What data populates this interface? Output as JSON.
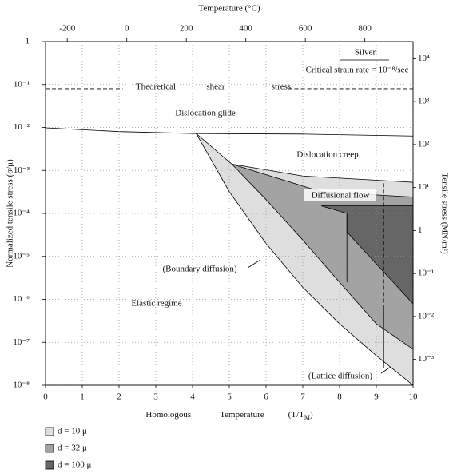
{
  "chart_data": {
    "type": "deformation-map",
    "x2label": "Temperature (°C)",
    "xlabel": [
      "Homologous",
      "Temperature",
      "(T/T",
      "M",
      ")"
    ],
    "ylabel": "Normalized tensile stress (σ/μ)",
    "y2label": "Tensile stress (MN/m²)",
    "xlim": [
      0,
      10
    ],
    "xticks": [
      0,
      1,
      2,
      3,
      4,
      5,
      6,
      7,
      8,
      9,
      10
    ],
    "x2lim": [
      -273,
      962
    ],
    "x2ticks": [
      -200,
      0,
      200,
      400,
      600,
      800
    ],
    "log_y": true,
    "ylim": [
      1e-08,
      1
    ],
    "yticks": [
      {
        "value": 1e-08,
        "label": "10⁻⁸"
      },
      {
        "value": 1e-07,
        "label": "10⁻⁷"
      },
      {
        "value": 1e-06,
        "label": "10⁻⁶"
      },
      {
        "value": 1e-05,
        "label": "10⁻⁵"
      },
      {
        "value": 0.0001,
        "label": "10⁻⁴"
      },
      {
        "value": 0.001,
        "label": "10⁻³"
      },
      {
        "value": 0.01,
        "label": "10⁻²"
      },
      {
        "value": 0.1,
        "label": "10⁻¹"
      },
      1
    ],
    "y2lim": [
      0.00025,
      25000
    ],
    "y2ticks": [
      {
        "value": 10000,
        "label": "10⁴"
      },
      {
        "value": 1000,
        "label": "10³"
      },
      {
        "value": 100,
        "label": "10²"
      },
      {
        "value": 10,
        "label": "10¹"
      },
      1,
      {
        "value": 0.1,
        "label": "10⁻¹"
      },
      {
        "value": 0.01,
        "label": "10⁻²"
      },
      {
        "value": 0.001,
        "label": "10⁻³"
      }
    ],
    "grid": true,
    "legend": "bottom-left",
    "series": [
      {
        "name": "d = 10 μ",
        "color": "#dedede",
        "x": [
          4.1,
          5.07,
          7,
          10,
          10,
          9,
          8,
          7,
          6,
          5
        ],
        "values": [
          0.0072,
          0.0014,
          0.00074,
          0.00053,
          1e-08,
          4.9e-08,
          2.7e-07,
          1.9e-06,
          2e-05,
          0.00032
        ]
      },
      {
        "name": "d = 32 μ",
        "color": "#a3a3a3",
        "x": [
          5.07,
          7.5,
          10,
          10,
          9,
          8,
          7,
          6
        ],
        "values": [
          0.0014,
          0.00032,
          0.00024,
          6.9e-08,
          2.7e-07,
          2.5e-06,
          2.4e-05,
          0.00021
        ]
      },
      {
        "name": "d = 100 μ",
        "color": "#666666",
        "x": [
          7.5,
          10,
          10,
          9,
          8.2,
          8.2
        ],
        "values": [
          0.00015,
          0.00015,
          7.9e-07,
          6.7e-06,
          3.7e-05,
          0.0001
        ]
      }
    ],
    "lines": [
      {
        "x": [
          0,
          2,
          4.1,
          7,
          10
        ],
        "values": [
          0.0098,
          0.008,
          0.0072,
          0.007,
          0.0063
        ],
        "dashed": false
      },
      {
        "x": [
          0,
          2.1
        ],
        "values": [
          0.08,
          0.08
        ],
        "dashed": true
      },
      {
        "x": [
          6.6,
          10
        ],
        "values": [
          0.08,
          0.08
        ],
        "dashed": true
      },
      {
        "x": [
          8.2,
          8.2
        ],
        "values": [
          0.0001,
          2.5e-06
        ],
        "dashed": false
      },
      {
        "x": [
          9.2,
          9.2
        ],
        "values": [
          0.0005,
          7e-07
        ],
        "dashed": true
      },
      {
        "x": [
          9.2,
          9.2
        ],
        "values": [
          7e-07,
          2.5e-08
        ],
        "dashed": false
      }
    ],
    "annotations": [
      "Theoretical",
      "shear",
      "stress",
      "Dislocation glide",
      "Dislocation creep",
      "Diffusional flow",
      "(Boundary diffusion)",
      "Elastic regime",
      "(Lattice diffusion)",
      "Silver",
      "Critical strain rate = 10⁻⁸/sec"
    ]
  }
}
